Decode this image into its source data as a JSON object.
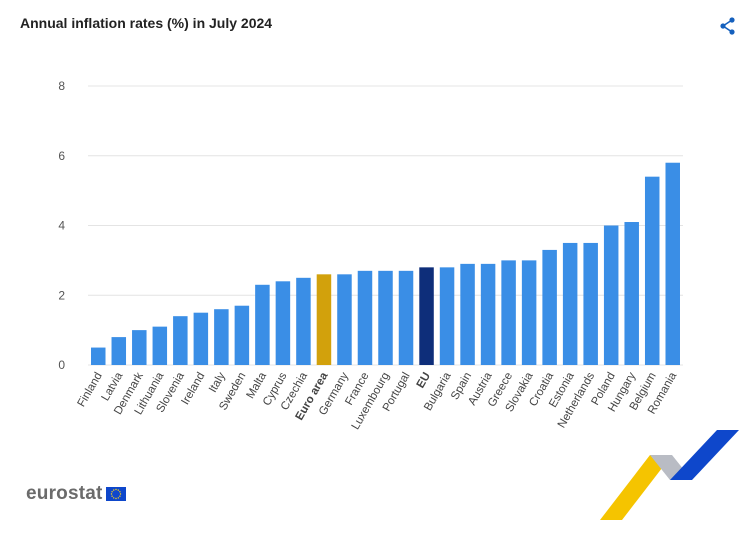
{
  "title": "Annual inflation rates (%) in July 2024",
  "share_icon": "share-icon",
  "logo": {
    "text": "eurostat",
    "flag_icon": "eu-flag-icon"
  },
  "colors": {
    "default": "#3a8ee6",
    "euro_area": "#d2a10c",
    "eu": "#0e2e7a",
    "grid": "#e4e4e4"
  },
  "chart_data": {
    "type": "bar",
    "title": "Annual inflation rates (%) in July 2024",
    "xlabel": "",
    "ylabel": "",
    "ylim": [
      0,
      8
    ],
    "yticks": [
      0,
      2,
      4,
      6,
      8
    ],
    "grid": true,
    "categories": [
      "Finland",
      "Latvia",
      "Denmark",
      "Lithuania",
      "Slovenia",
      "Ireland",
      "Italy",
      "Sweden",
      "Malta",
      "Cyprus",
      "Czechia",
      "Euro area",
      "Germany",
      "France",
      "Luxembourg",
      "Portugal",
      "EU",
      "Bulgaria",
      "Spain",
      "Austria",
      "Greece",
      "Slovakia",
      "Croatia",
      "Estonia",
      "Netherlands",
      "Poland",
      "Hungary",
      "Belgium",
      "Romania"
    ],
    "values": [
      0.5,
      0.8,
      1.0,
      1.1,
      1.4,
      1.5,
      1.6,
      1.7,
      2.3,
      2.4,
      2.5,
      2.6,
      2.6,
      2.7,
      2.7,
      2.7,
      2.8,
      2.8,
      2.9,
      2.9,
      3.0,
      3.0,
      3.3,
      3.5,
      3.5,
      4.0,
      4.1,
      5.4,
      5.8
    ],
    "highlight": {
      "Euro area": "euro_area",
      "EU": "eu"
    },
    "bold_labels": [
      "Euro area",
      "EU"
    ]
  }
}
